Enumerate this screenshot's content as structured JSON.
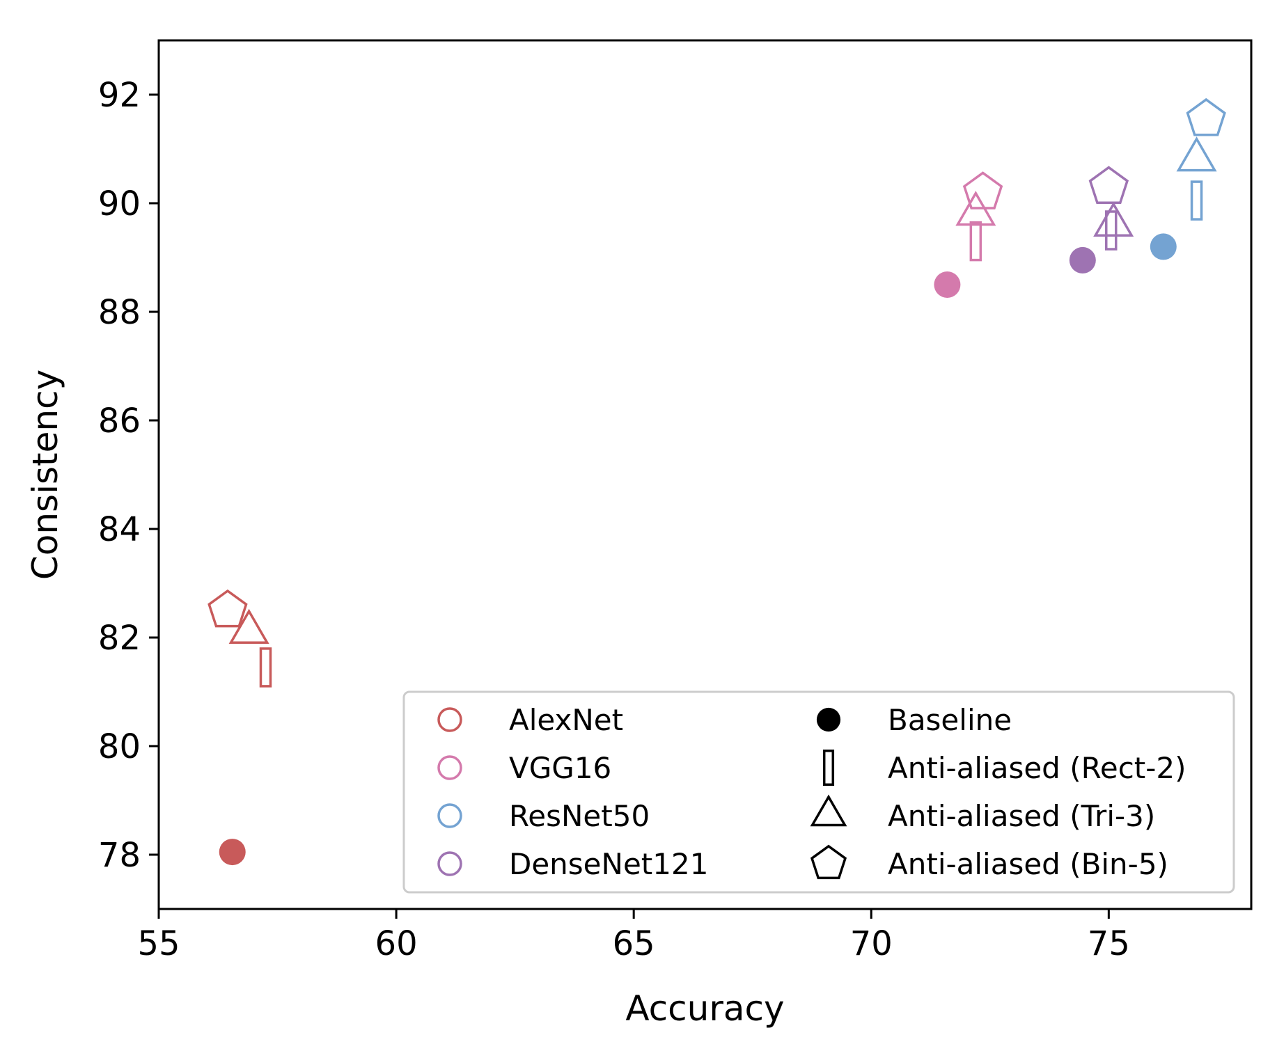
{
  "chart_data": {
    "type": "scatter",
    "title": "",
    "xlabel": "Accuracy",
    "ylabel": "Consistency",
    "xlim": [
      55,
      78
    ],
    "ylim": [
      77,
      93
    ],
    "x_ticks": [
      55,
      60,
      65,
      70,
      75
    ],
    "y_ticks": [
      78,
      80,
      82,
      84,
      86,
      88,
      90,
      92
    ],
    "grid": false,
    "legend_position": "lower-right",
    "networks": [
      {
        "name": "AlexNet",
        "color": "#c85a5a"
      },
      {
        "name": "VGG16",
        "color": "#d47aac"
      },
      {
        "name": "ResNet50",
        "color": "#74a3d2"
      },
      {
        "name": "DenseNet121",
        "color": "#9e73b2"
      }
    ],
    "methods": [
      {
        "name": "Baseline",
        "marker": "filled-circle"
      },
      {
        "name": "Anti-aliased (Rect-2)",
        "marker": "thin-rectangle"
      },
      {
        "name": "Anti-aliased (Tri-3)",
        "marker": "triangle"
      },
      {
        "name": "Anti-aliased (Bin-5)",
        "marker": "pentagon"
      }
    ],
    "points": [
      {
        "network": "AlexNet",
        "method": "Baseline",
        "x": 56.55,
        "y": 78.05
      },
      {
        "network": "AlexNet",
        "method": "Anti-aliased (Rect-2)",
        "x": 57.25,
        "y": 81.45
      },
      {
        "network": "AlexNet",
        "method": "Anti-aliased (Tri-3)",
        "x": 56.9,
        "y": 82.1
      },
      {
        "network": "AlexNet",
        "method": "Anti-aliased (Bin-5)",
        "x": 56.45,
        "y": 82.5
      },
      {
        "network": "VGG16",
        "method": "Baseline",
        "x": 71.6,
        "y": 88.5
      },
      {
        "network": "VGG16",
        "method": "Anti-aliased (Rect-2)",
        "x": 72.2,
        "y": 89.3
      },
      {
        "network": "VGG16",
        "method": "Anti-aliased (Tri-3)",
        "x": 72.2,
        "y": 89.8
      },
      {
        "network": "VGG16",
        "method": "Anti-aliased (Bin-5)",
        "x": 72.35,
        "y": 90.2
      },
      {
        "network": "ResNet50",
        "method": "Baseline",
        "x": 76.15,
        "y": 89.2
      },
      {
        "network": "ResNet50",
        "method": "Anti-aliased (Rect-2)",
        "x": 76.85,
        "y": 90.05
      },
      {
        "network": "ResNet50",
        "method": "Anti-aliased (Tri-3)",
        "x": 76.85,
        "y": 90.8
      },
      {
        "network": "ResNet50",
        "method": "Anti-aliased (Bin-5)",
        "x": 77.05,
        "y": 91.55
      },
      {
        "network": "DenseNet121",
        "method": "Baseline",
        "x": 74.45,
        "y": 88.95
      },
      {
        "network": "DenseNet121",
        "method": "Anti-aliased (Rect-2)",
        "x": 75.05,
        "y": 89.5
      },
      {
        "network": "DenseNet121",
        "method": "Anti-aliased (Tri-3)",
        "x": 75.1,
        "y": 89.6
      },
      {
        "network": "DenseNet121",
        "method": "Anti-aliased (Bin-5)",
        "x": 75.0,
        "y": 90.3
      }
    ]
  }
}
